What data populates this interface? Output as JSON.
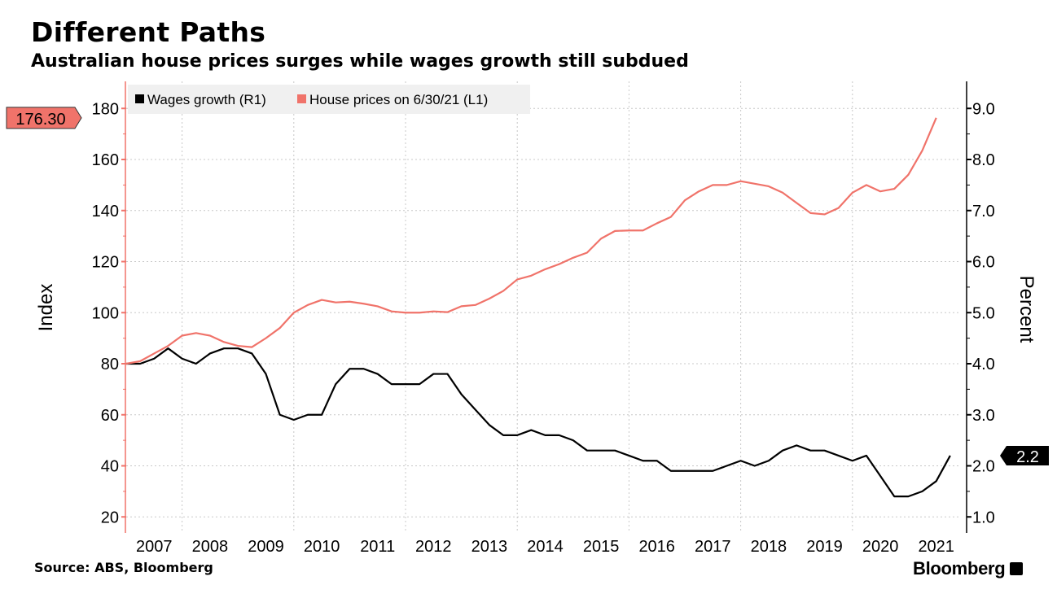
{
  "header": {
    "title": "Different Paths",
    "subtitle": "Australian house prices surges while wages growth still subdued"
  },
  "footer": {
    "source": "Source: ABS, Bloomberg",
    "logo": "Bloomberg"
  },
  "chart_data": {
    "type": "line",
    "title": "Different Paths",
    "subtitle": "Australian house prices surges while wages growth still subdued",
    "xlabel": "",
    "ylabel_left": "Index",
    "ylabel_right": "Percent",
    "xlim": [
      2007.0,
      2021.95
    ],
    "ylim_left": [
      15,
      190
    ],
    "ylim_right": [
      0.75,
      9.5
    ],
    "left_ticks": [
      "20",
      "40",
      "60",
      "80",
      "100",
      "120",
      "140",
      "160",
      "180"
    ],
    "right_ticks": [
      "1.0",
      "2.0",
      "3.0",
      "4.0",
      "5.0",
      "6.0",
      "7.0",
      "8.0",
      "9.0"
    ],
    "x_tick_labels": [
      "2007",
      "2008",
      "2009",
      "2010",
      "2011",
      "2012",
      "2013",
      "2014",
      "2015",
      "2016",
      "2017",
      "2018",
      "2019",
      "2020",
      "2021"
    ],
    "grid": true,
    "legend_position": "top-left",
    "colors": {
      "wages": "#000000",
      "house": "#f0736a"
    },
    "series": [
      {
        "name": "Wages growth (R1)",
        "axis": "right",
        "x_start": 2007.0,
        "x_step": 0.25,
        "values": [
          4.0,
          4.0,
          4.1,
          4.3,
          4.1,
          4.0,
          4.2,
          4.3,
          4.3,
          4.2,
          3.8,
          3.0,
          2.9,
          3.0,
          3.0,
          3.6,
          3.9,
          3.9,
          3.8,
          3.6,
          3.6,
          3.6,
          3.8,
          3.8,
          3.4,
          3.1,
          2.8,
          2.6,
          2.6,
          2.7,
          2.6,
          2.6,
          2.5,
          2.3,
          2.3,
          2.3,
          2.2,
          2.1,
          2.1,
          1.9,
          1.9,
          1.9,
          1.9,
          2.0,
          2.1,
          2.0,
          2.1,
          2.3,
          2.4,
          2.3,
          2.3,
          2.2,
          2.1,
          2.2,
          1.8,
          1.4,
          1.4,
          1.5,
          1.7,
          2.2
        ],
        "last_value_label": "2.2"
      },
      {
        "name": "House prices on 6/30/21 (L1)",
        "axis": "left",
        "x_start": 2007.0,
        "x_step": 0.25,
        "values": [
          80,
          81,
          84,
          87,
          91,
          92,
          91,
          88.5,
          87,
          86.5,
          90,
          94,
          100,
          103,
          105,
          104,
          104.3,
          103.5,
          102.5,
          100.5,
          100,
          100,
          100.5,
          100.2,
          102.5,
          103,
          105.5,
          108.5,
          113,
          114.5,
          117,
          119,
          121.5,
          123.5,
          129,
          132,
          132.2,
          132.2,
          135,
          137.5,
          144,
          147.5,
          150,
          150,
          151.5,
          150.5,
          149.5,
          147,
          143,
          139,
          138.5,
          141,
          147,
          150,
          147.5,
          148.5,
          154,
          163.5,
          176.3
        ],
        "last_value_label": "176.30"
      }
    ]
  }
}
